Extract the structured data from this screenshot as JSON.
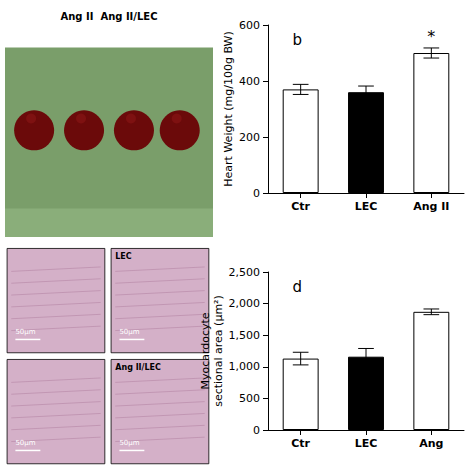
{
  "chart_data": [
    {
      "type": "bar",
      "title": "b",
      "categories": [
        "Ctr",
        "LEC",
        "Ang II"
      ],
      "values": [
        370,
        360,
        500
      ],
      "errors": [
        18,
        22,
        18
      ],
      "ylabel": "Heart Weight (mg/100g BW)",
      "ylim": [
        0,
        600
      ],
      "yticks": [
        0,
        200,
        400,
        600
      ],
      "colors": [
        "white",
        "black",
        "white"
      ],
      "grid": false,
      "annotations": [
        {
          "text": "Ang II  Ang II/LEC"
        },
        {
          "text": "*",
          "x": "Ang II"
        }
      ]
    },
    {
      "type": "bar",
      "title": "d",
      "categories": [
        "Ctr",
        "LEC",
        "Ang"
      ],
      "values": [
        1130,
        1160,
        1870
      ],
      "errors": [
        100,
        130,
        45
      ],
      "ylabel": "Myocardocyte\nsectional area (μm²)",
      "ylim": [
        0,
        2500
      ],
      "yticks": [
        0,
        500,
        1000,
        1500,
        2000,
        2500
      ],
      "colors": [
        "white",
        "black",
        "white"
      ],
      "grid": false,
      "annotations": [
        {
          "text": "LEC"
        },
        {
          "text": "Ang II/LEC"
        },
        {
          "text": "50μm"
        }
      ]
    }
  ]
}
